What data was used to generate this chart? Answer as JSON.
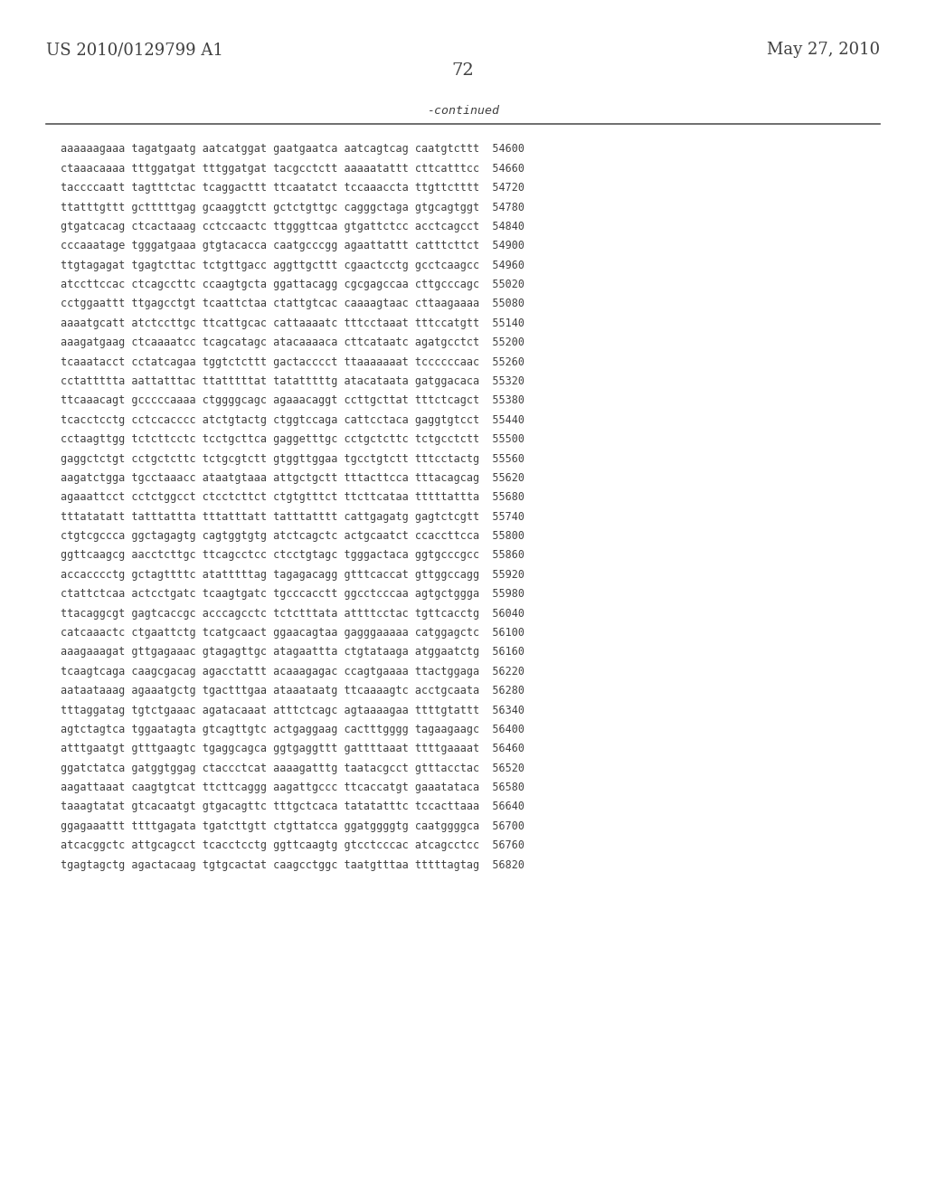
{
  "header_left": "US 2010/0129799 A1",
  "header_right": "May 27, 2010",
  "page_number": "72",
  "continued_label": "-continued",
  "background_color": "#ffffff",
  "text_color": "#404040",
  "line_color": "#555555",
  "font_size_header": 13,
  "font_size_body": 8.5,
  "font_size_page": 14,
  "lines": [
    "aaaaaagaaa tagatgaatg aatcatggat gaatgaatca aatcagtcag caatgtcttt  54600",
    "ctaaacaaaa tttggatgat tttggatgat tacgcctctt aaaaatattt cttcatttcc  54660",
    "taccccaatt tagtttctac tcaggacttt ttcaatatct tccaaaccta ttgttctttt  54720",
    "ttatttgttt gctttttgag gcaaggtctt gctctgttgc cagggctaga gtgcagtggt  54780",
    "gtgatcacag ctcactaaag cctccaactc ttgggttcaa gtgattctcc acctcagcct  54840",
    "cccaaatage tgggatgaaa gtgtacacca caatgcccgg agaattattt catttcttct  54900",
    "ttgtagagat tgagtcttac tctgttgacc aggttgcttt cgaactcctg gcctcaagcc  54960",
    "atccttccac ctcagccttc ccaagtgcta ggattacagg cgcgagccaa cttgcccagc  55020",
    "cctggaattt ttgagcctgt tcaattctaa ctattgtcac caaaagtaac cttaagaaaa  55080",
    "aaaatgcatt atctccttgc ttcattgcac cattaaaatc tttcctaaat tttccatgtt  55140",
    "aaagatgaag ctcaaaatcc tcagcatagc atacaaaaca cttcataatc agatgcctct  55200",
    "tcaaatacct cctatcagaa tggtctcttt gactacccct ttaaaaaaat tccccccaac  55260",
    "cctattttta aattatttac ttatttttat tatatttttg atacataata gatggacaca  55320",
    "ttcaaacagt gcccccaaaa ctggggcagc agaaacaggt ccttgcttat tttctcagct  55380",
    "tcacctcctg cctccacccc atctgtactg ctggtccaga cattcctaca gaggtgtcct  55440",
    "cctaagttgg tctcttcctc tcctgcttca gaggetttgc cctgctcttc tctgcctctt  55500",
    "gaggctctgt cctgctcttc tctgcgtctt gtggttggaa tgcctgtctt tttcctactg  55560",
    "aagatctgga tgcctaaacc ataatgtaaa attgctgctt tttacttcca tttacagcag  55620",
    "agaaattcct cctctggcct ctcctcttct ctgtgtttct ttcttcataa tttttattta  55680",
    "tttatatatt tatttattta tttatttatt tatttatttt cattgagatg gagtctcgtt  55740",
    "ctgtcgccca ggctagagtg cagtggtgtg atctcagctc actgcaatct ccaccttcca  55800",
    "ggttcaagcg aacctcttgc ttcagcctcc ctcctgtagc tgggactaca ggtgcccgcc  55860",
    "accacccctg gctagttttc atatttttag tagagacagg gtttcaccat gttggccagg  55920",
    "ctattctcaa actcctgatc tcaagtgatc tgcccacctt ggcctcccaa agtgctggga  55980",
    "ttacaggcgt gagtcaccgc acccagcctc tctctttata attttcctac tgttcacctg  56040",
    "catcaaactc ctgaattctg tcatgcaact ggaacagtaa gagggaaaaa catggagctc  56100",
    "aaagaaagat gttgagaaac gtagagttgc atagaattta ctgtataaga atggaatctg  56160",
    "tcaagtcaga caagcgacag agacctattt acaaagagac ccagtgaaaa ttactggaga  56220",
    "aataataaag agaaatgctg tgactttgaa ataaataatg ttcaaaagtc acctgcaata  56280",
    "tttaggatag tgtctgaaac agatacaaat atttctcagc agtaaaagaa ttttgtattt  56340",
    "agtctagtca tggaatagta gtcagttgtc actgaggaag cactttgggg tagaagaagc  56400",
    "atttgaatgt gtttgaagtc tgaggcagca ggtgaggttt gattttaaat ttttgaaaat  56460",
    "ggatctatca gatggtggag ctaccctcat aaaagatttg taatacgcct gtttacctac  56520",
    "aagattaaat caagtgtcat ttcttcaggg aagattgccc ttcaccatgt gaaatataca  56580",
    "taaagtatat gtcacaatgt gtgacagttc tttgctcaca tatatatttc tccacttaaa  56640",
    "ggagaaattt ttttgagata tgatcttgtt ctgttatcca ggatggggtg caatggggca  56700",
    "atcacggctc attgcagcct tcacctcctg ggttcaagtg gtcctcccac atcagcctcc  56760",
    "tgagtagctg agactacaag tgtgcactat caagcctggc taatgtttaa tttttagtag  56820"
  ]
}
